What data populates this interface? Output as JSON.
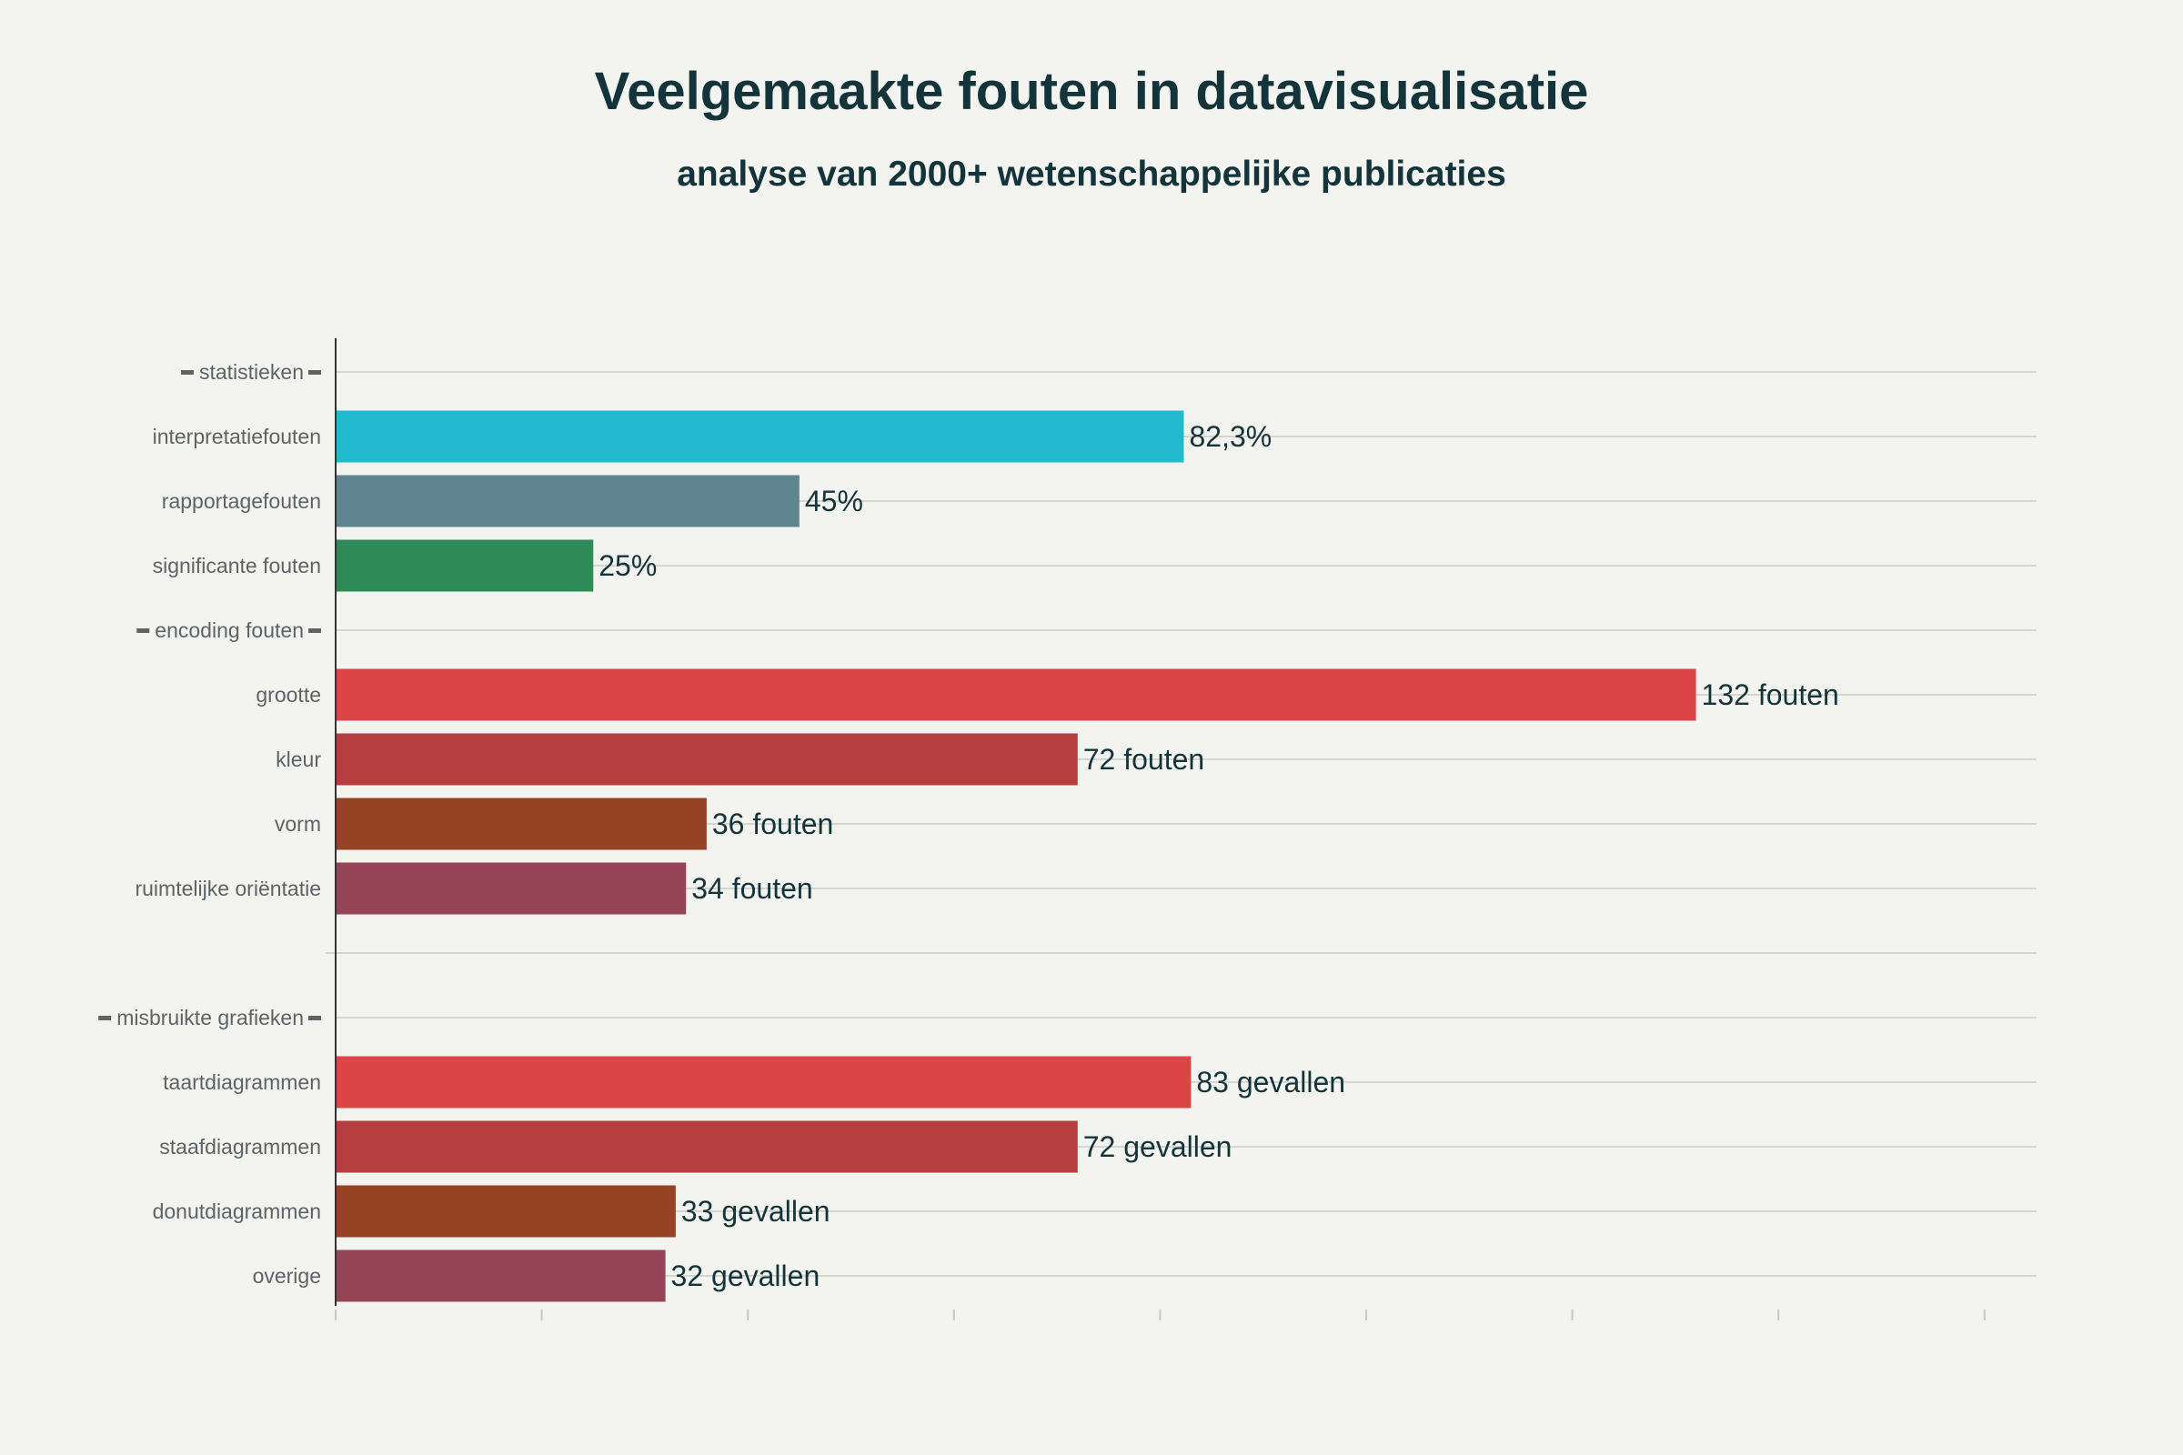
{
  "chart_data": {
    "type": "bar",
    "orientation": "horizontal",
    "title": "Veelgemaakte fouten in datavisualisatie",
    "subtitle": "analyse van 2000+ wetenschappelijke publicaties",
    "xlim": [
      0,
      160
    ],
    "xticks": [
      0,
      20,
      40,
      60,
      80,
      100,
      120,
      140,
      160
    ],
    "x_tick_labels_shown": false,
    "grid": "horizontal",
    "rows": [
      {
        "kind": "group",
        "label": "statistieken"
      },
      {
        "kind": "bar",
        "label": "interpretatiefouten",
        "value": 82.3,
        "value_label": "82,3%",
        "color": "#22b8cd"
      },
      {
        "kind": "bar",
        "label": "rapportagefouten",
        "value": 45,
        "value_label": "45%",
        "color": "#5f8690"
      },
      {
        "kind": "bar",
        "label": "significante fouten",
        "value": 25,
        "value_label": "25%",
        "color": "#2e8a56"
      },
      {
        "kind": "group",
        "label": "encoding fouten"
      },
      {
        "kind": "bar",
        "label": "grootte",
        "value": 132,
        "value_label": "132 fouten",
        "color": "#db4545"
      },
      {
        "kind": "bar",
        "label": "kleur",
        "value": 72,
        "value_label": "72 fouten",
        "color": "#b53f3f"
      },
      {
        "kind": "bar",
        "label": "vorm",
        "value": 36,
        "value_label": "36 fouten",
        "color": "#964325"
      },
      {
        "kind": "bar",
        "label": "ruimtelijke oriëntatie",
        "value": 34,
        "value_label": "34 fouten",
        "color": "#944454"
      },
      {
        "kind": "spacer",
        "label": ""
      },
      {
        "kind": "group",
        "label": "misbruikte grafieken"
      },
      {
        "kind": "bar",
        "label": "taartdiagrammen",
        "value": 83,
        "value_label": "83 gevallen",
        "color": "#db4545"
      },
      {
        "kind": "bar",
        "label": "staafdiagrammen",
        "value": 72,
        "value_label": "72 gevallen",
        "color": "#b53f3f"
      },
      {
        "kind": "bar",
        "label": "donutdiagrammen",
        "value": 33,
        "value_label": "33 gevallen",
        "color": "#964325"
      },
      {
        "kind": "bar",
        "label": "overige",
        "value": 32,
        "value_label": "32 gevallen",
        "color": "#944454"
      }
    ]
  }
}
